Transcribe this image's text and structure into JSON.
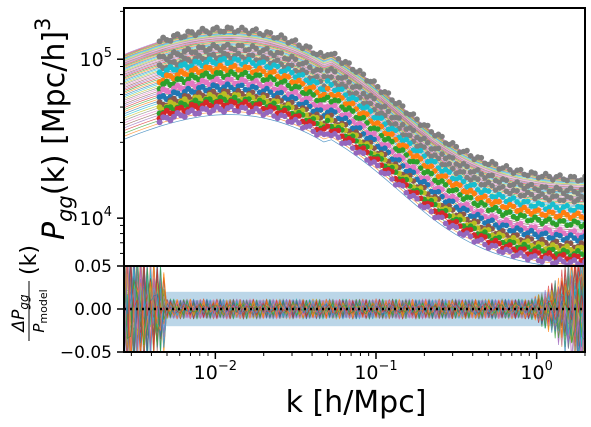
{
  "chart_data": [
    {
      "type": "scatter",
      "panel": "top",
      "ylabel_main": "P",
      "ylabel_sub": "gg",
      "ylabel_rest": "(k) [Mpc/h]",
      "ylabel_sup": "3",
      "x_scale": "log",
      "y_scale": "log",
      "xlim": [
        0.0027,
        2.0
      ],
      "ylim": [
        5000,
        210000
      ],
      "y_ticks": [
        {
          "value": 10000,
          "base": "10",
          "exp": "4"
        },
        {
          "value": 100000,
          "base": "10",
          "exp": "5"
        }
      ],
      "grid": false,
      "legend": "none",
      "series": [
        {
          "color": "#7f7f7f",
          "amplitude": 161000,
          "tail": 14000
        },
        {
          "color": "#7f7f7f",
          "amplitude": 125000,
          "tail": 11800
        },
        {
          "color": "#7f7f7f",
          "amplitude": 110000,
          "tail": 10500
        },
        {
          "color": "#17becf",
          "amplitude": 102000,
          "tail": 9100
        },
        {
          "color": "#ff7f0e",
          "amplitude": 92000,
          "tail": 8200
        },
        {
          "color": "#2ca02c",
          "amplitude": 84000,
          "tail": 7300
        },
        {
          "color": "#e377c2",
          "amplitude": 76000,
          "tail": 6300
        },
        {
          "color": "#1f77b4",
          "amplitude": 70000,
          "tail": 5900
        },
        {
          "color": "#8c564b",
          "amplitude": 64000,
          "tail": 5300
        },
        {
          "color": "#bcbd22",
          "amplitude": 61000,
          "tail": 5000
        },
        {
          "color": "#2ca02c",
          "amplitude": 58000,
          "tail": 4700
        },
        {
          "color": "#d62728",
          "amplitude": 55000,
          "tail": 4400
        },
        {
          "color": "#9467bd",
          "amplitude": 51000,
          "tail": 4100
        }
      ]
    },
    {
      "type": "line",
      "panel": "bottom",
      "ylabel_num": "ΔP",
      "ylabel_num_sub": "gg",
      "ylabel_den": "P",
      "ylabel_den_sub": "model",
      "ylabel_suffix": "(k)",
      "xlabel": "k [h/Mpc]",
      "x_scale": "log",
      "xlim": [
        0.0027,
        2.0
      ],
      "ylim": [
        -0.05,
        0.05
      ],
      "y_ticks": [
        "0.05",
        "0.00",
        "−0.05"
      ],
      "y_tick_values": [
        0.05,
        0.0,
        -0.05
      ],
      "x_ticks": [
        {
          "value": 0.01,
          "base": "10",
          "exp": "−2"
        },
        {
          "value": 0.1,
          "base": "10",
          "exp": "−1"
        },
        {
          "value": 1,
          "base": "10",
          "exp": "0"
        }
      ],
      "bands": [
        {
          "name": "outer",
          "range": [
            -0.02,
            0.02
          ],
          "color": "#1f77b4",
          "opacity": 0.3
        },
        {
          "name": "inner",
          "range": [
            -0.01,
            0.01
          ],
          "color": "#9467bd",
          "opacity": 0.5
        }
      ],
      "zero_line": {
        "value": 0.0,
        "style": "dotted",
        "color": "#000000"
      },
      "grid": false,
      "legend": "none"
    }
  ],
  "palette": [
    "#1f77b4",
    "#ff7f0e",
    "#2ca02c",
    "#d62728",
    "#9467bd",
    "#8c564b",
    "#e377c2",
    "#7f7f7f",
    "#bcbd22",
    "#17becf"
  ]
}
